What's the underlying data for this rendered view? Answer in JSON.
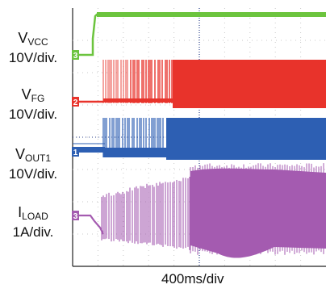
{
  "chart_data": {
    "type": "line",
    "xlabel": "400ms/div",
    "grid": true,
    "series": [
      {
        "id": "vcc",
        "label_main": "V",
        "label_sub": "VCC",
        "scale": "10V/div.",
        "marker": "3",
        "color": "#6cc43e"
      },
      {
        "id": "vfg",
        "label_main": "V",
        "label_sub": "FG",
        "scale": "10V/div.",
        "marker": "2",
        "color": "#e8332b"
      },
      {
        "id": "vout1",
        "label_main": "V",
        "label_sub": "OUT1",
        "scale": "10V/div.",
        "marker": "1",
        "color": "#2d5fb3"
      },
      {
        "id": "iload",
        "label_main": "I",
        "label_sub": "LOAD",
        "scale": "1A/div.",
        "marker": "3",
        "color": "#a45bb0"
      }
    ]
  }
}
